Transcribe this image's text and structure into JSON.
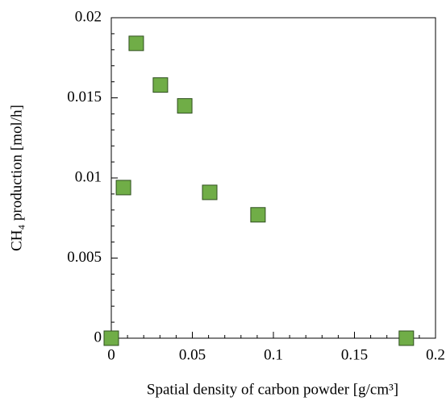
{
  "chart_data": {
    "type": "scatter",
    "x_label": "Spatial density of carbon powder [g/cm³]",
    "y_label": "CH₄ production [mol/h]",
    "series": [
      {
        "color": "#70ad47",
        "x": [
          0,
          0.0075,
          0.0154,
          0.0303,
          0.0453,
          0.0607,
          0.0905,
          0.182
        ],
        "values": [
          0,
          0.0094,
          0.0184,
          0.0158,
          0.0145,
          0.0091,
          0.0077,
          0
        ]
      }
    ],
    "xlim": [
      0,
      0.2
    ],
    "xticks": [
      0,
      0.05,
      0.1,
      0.15,
      0.2
    ],
    "ylim": [
      0,
      0.02
    ],
    "yticks": [
      0,
      0.005,
      0.01,
      0.015,
      0.02
    ]
  }
}
